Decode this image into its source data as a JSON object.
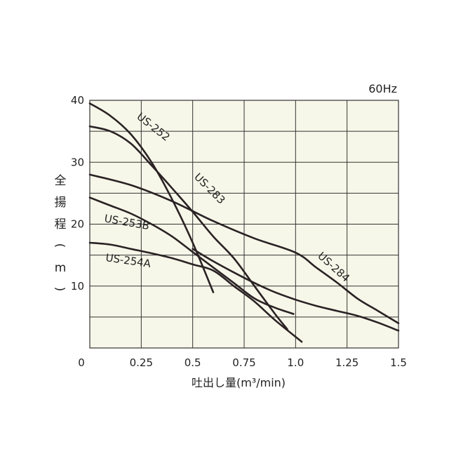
{
  "chart_data": {
    "type": "line",
    "frequency_label": "60Hz",
    "xlabel": "吐出し量(m³/min)",
    "ylabel": "全揚程(m)",
    "xlim": [
      0,
      1.5
    ],
    "ylim": [
      0,
      40
    ],
    "x_ticks": [
      "0",
      "0.25",
      "0.5",
      "0.75",
      "1.0",
      "1.25",
      "1.5"
    ],
    "y_ticks": [
      "10",
      "20",
      "30",
      "40"
    ],
    "grid": true,
    "plot_background": "#f7f7e9",
    "series": [
      {
        "name": "US-252",
        "points": [
          [
            0,
            39.5
          ],
          [
            0.1,
            37.5
          ],
          [
            0.2,
            34.5
          ],
          [
            0.3,
            30
          ],
          [
            0.4,
            24
          ],
          [
            0.5,
            17
          ],
          [
            0.6,
            9
          ]
        ]
      },
      {
        "name": "US-283",
        "points": [
          [
            0,
            35.8
          ],
          [
            0.1,
            35
          ],
          [
            0.2,
            33
          ],
          [
            0.3,
            29.5
          ],
          [
            0.4,
            25.8
          ],
          [
            0.5,
            22
          ],
          [
            0.6,
            18
          ],
          [
            0.7,
            14.5
          ],
          [
            0.8,
            10
          ],
          [
            0.9,
            5.5
          ],
          [
            0.96,
            3
          ]
        ]
      },
      {
        "name": "US-253B",
        "points": [
          [
            0,
            24.3
          ],
          [
            0.1,
            23
          ],
          [
            0.2,
            21.7
          ],
          [
            0.3,
            20
          ],
          [
            0.4,
            18
          ],
          [
            0.5,
            15.5
          ],
          [
            0.6,
            13
          ],
          [
            0.7,
            10.5
          ],
          [
            0.8,
            8
          ],
          [
            0.9,
            6.5
          ],
          [
            0.99,
            5.5
          ]
        ]
      },
      {
        "name": "US-254A",
        "points": [
          [
            0,
            17
          ],
          [
            0.1,
            16.7
          ],
          [
            0.2,
            16
          ],
          [
            0.3,
            15.3
          ],
          [
            0.4,
            14.5
          ],
          [
            0.5,
            13.5
          ],
          [
            0.6,
            12.5
          ],
          [
            0.7,
            10
          ],
          [
            0.8,
            7.5
          ],
          [
            0.9,
            4.5
          ],
          [
            1.03,
            1
          ]
        ]
      },
      {
        "name": "US-284",
        "points": [
          [
            0,
            28
          ],
          [
            0.2,
            26.3
          ],
          [
            0.4,
            23.7
          ],
          [
            0.6,
            20.5
          ],
          [
            0.8,
            17.7
          ],
          [
            1.0,
            15.4
          ],
          [
            1.1,
            13
          ],
          [
            1.2,
            10.6
          ],
          [
            1.3,
            8
          ],
          [
            1.4,
            6
          ],
          [
            1.5,
            4
          ]
        ]
      },
      {
        "name": "",
        "points": [
          [
            0.5,
            16
          ],
          [
            0.6,
            14
          ],
          [
            0.7,
            12.2
          ],
          [
            0.8,
            10.5
          ],
          [
            0.9,
            9
          ],
          [
            1.0,
            7.8
          ],
          [
            1.1,
            6.8
          ],
          [
            1.2,
            6
          ],
          [
            1.3,
            5.2
          ],
          [
            1.4,
            4.1
          ],
          [
            1.5,
            2.8
          ]
        ]
      }
    ]
  }
}
